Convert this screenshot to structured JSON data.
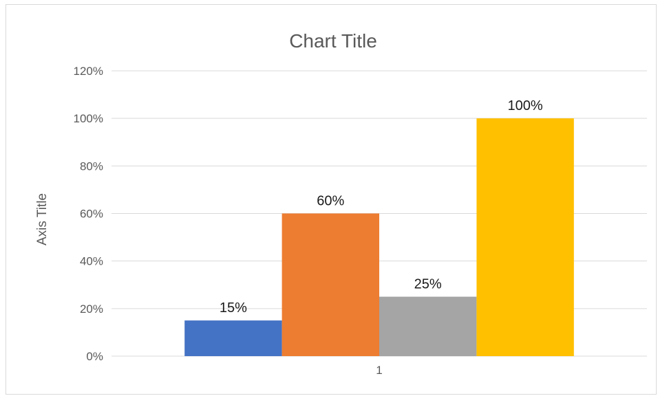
{
  "chart_data": {
    "type": "bar",
    "title": "Chart Title",
    "ylabel": "Axis Title",
    "xlabel": "",
    "categories": [
      "1"
    ],
    "series": [
      {
        "values": [
          0.15
        ],
        "color": "#4472C4"
      },
      {
        "values": [
          0.6
        ],
        "color": "#ED7D31"
      },
      {
        "values": [
          0.25
        ],
        "color": "#A5A5A5"
      },
      {
        "values": [
          1.0
        ],
        "color": "#FFC000"
      }
    ],
    "data_labels": [
      "15%",
      "60%",
      "25%",
      "100%"
    ],
    "ylim": [
      0,
      1.2
    ],
    "yticks": [
      0,
      0.2,
      0.4,
      0.6,
      0.8,
      1.0,
      1.2
    ],
    "ytick_labels": [
      "0%",
      "20%",
      "40%",
      "60%",
      "80%",
      "100%",
      "120%"
    ],
    "grid": true,
    "legend": "none"
  }
}
